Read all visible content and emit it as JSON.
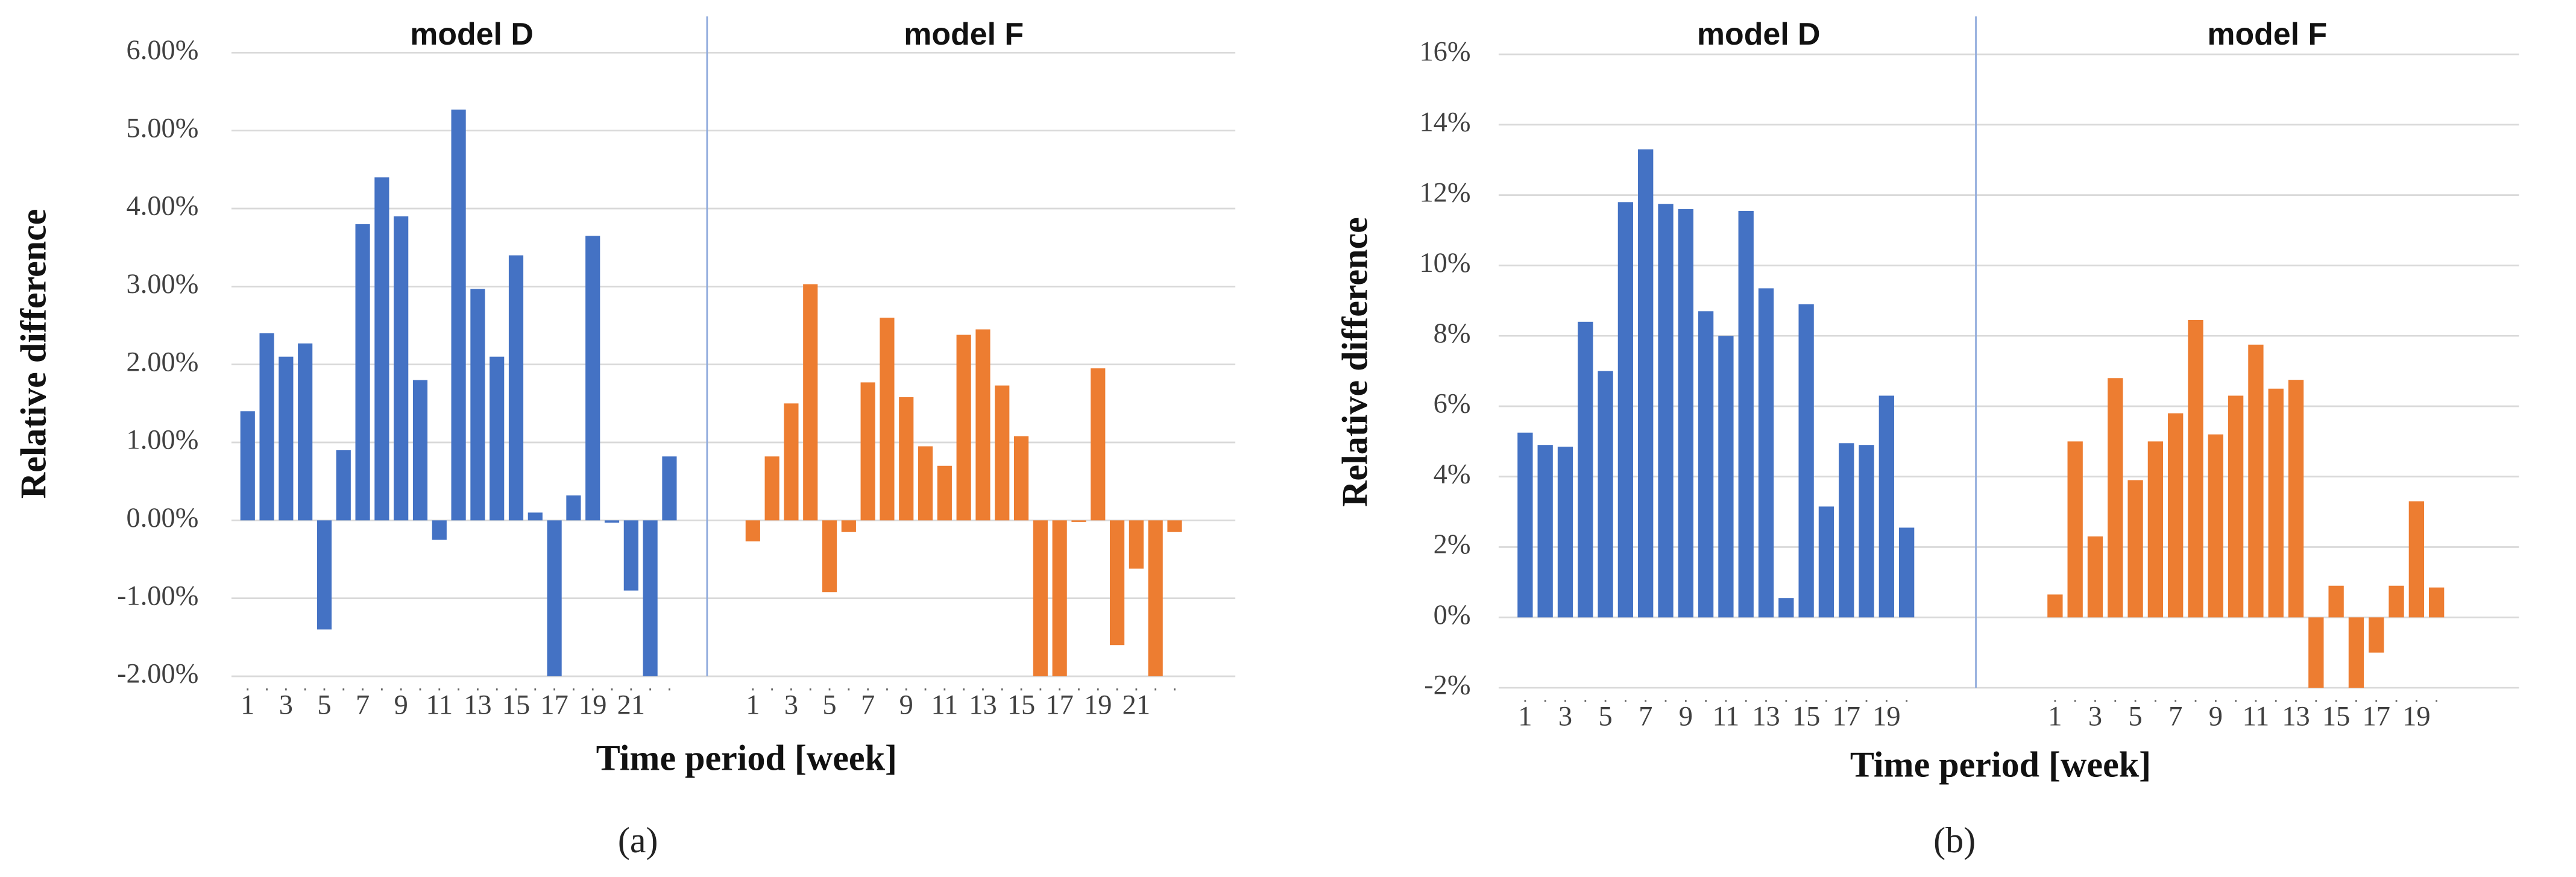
{
  "chart_data": [
    {
      "type": "bar",
      "caption": "(a)",
      "y_label": "Relative difference",
      "x_label": "Time period [week]",
      "categories": [
        "1",
        null,
        "3",
        null,
        "5",
        null,
        "7",
        null,
        "9",
        null,
        "11",
        null,
        "13",
        null,
        "15",
        null,
        "17",
        null,
        "19",
        null,
        "21",
        null,
        null
      ],
      "series": [
        {
          "name": "model D",
          "color": "#4472c4",
          "values": [
            1.4,
            2.4,
            2.1,
            2.27,
            -1.4,
            0.9,
            3.8,
            4.4,
            3.9,
            1.8,
            -0.25,
            5.27,
            2.97,
            2.1,
            3.4,
            0.1,
            -2.0,
            0.32,
            3.65,
            -0.03,
            -0.9,
            -2.0,
            0.82
          ]
        },
        {
          "name": "model F",
          "color": "#ed7d31",
          "values": [
            -0.27,
            0.82,
            1.5,
            3.03,
            -0.92,
            -0.15,
            1.77,
            2.6,
            1.58,
            0.95,
            0.7,
            2.38,
            2.45,
            1.73,
            1.08,
            -2.0,
            -2.0,
            -0.02,
            1.95,
            -1.6,
            -0.62,
            -2.0,
            -0.15
          ]
        }
      ],
      "ylim": [
        -2,
        6
      ],
      "yticks": [
        {
          "value": -2,
          "label": "-2.00%"
        },
        {
          "value": -1,
          "label": "-1.00%"
        },
        {
          "value": 0,
          "label": "0.00%"
        },
        {
          "value": 1,
          "label": "1.00%"
        },
        {
          "value": 2,
          "label": "2.00%"
        },
        {
          "value": 3,
          "label": "3.00%"
        },
        {
          "value": 4,
          "label": "4.00%"
        },
        {
          "value": 5,
          "label": "5.00%"
        },
        {
          "value": 6,
          "label": "6.00%"
        }
      ],
      "grid": true
    },
    {
      "type": "bar",
      "caption": "(b)",
      "y_label": "Relative difference",
      "x_label": "Time period [week]",
      "categories": [
        "1",
        null,
        "3",
        null,
        "5",
        null,
        "7",
        null,
        "9",
        null,
        "11",
        null,
        "13",
        null,
        "15",
        null,
        "17",
        null,
        "19",
        null
      ],
      "series": [
        {
          "name": "model D",
          "color": "#4472c4",
          "values": [
            5.25,
            4.9,
            4.85,
            8.4,
            7.0,
            11.8,
            13.3,
            11.75,
            11.6,
            8.7,
            8.0,
            11.55,
            9.35,
            0.55,
            8.9,
            3.15,
            4.95,
            4.9,
            6.3,
            2.55
          ]
        },
        {
          "name": "model F",
          "color": "#ed7d31",
          "values": [
            0.65,
            5.0,
            2.3,
            6.8,
            3.9,
            5.0,
            5.8,
            8.45,
            5.2,
            6.3,
            7.75,
            6.5,
            6.75,
            -2.0,
            0.9,
            -2.0,
            -1.0,
            0.9,
            3.3,
            0.85
          ]
        }
      ],
      "ylim": [
        -2,
        16
      ],
      "yticks": [
        {
          "value": -2,
          "label": "-2%"
        },
        {
          "value": 0,
          "label": "0%"
        },
        {
          "value": 2,
          "label": "2%"
        },
        {
          "value": 4,
          "label": "4%"
        },
        {
          "value": 6,
          "label": "6%"
        },
        {
          "value": 8,
          "label": "8%"
        },
        {
          "value": 10,
          "label": "10%"
        },
        {
          "value": 12,
          "label": "12%"
        },
        {
          "value": 14,
          "label": "14%"
        },
        {
          "value": 16,
          "label": "16%"
        }
      ],
      "grid": true
    }
  ]
}
